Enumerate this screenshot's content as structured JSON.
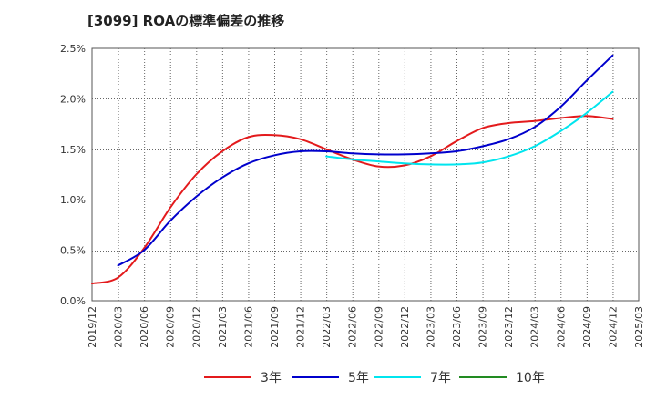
{
  "chart_data": {
    "type": "line",
    "title": "[3099]  ROAの標準偏差の推移",
    "xlabel": "",
    "ylabel": "",
    "x_ticks": [
      "2019/12",
      "2020/03",
      "2020/06",
      "2020/09",
      "2020/12",
      "2021/03",
      "2021/06",
      "2021/09",
      "2021/12",
      "2022/03",
      "2022/06",
      "2022/09",
      "2022/12",
      "2023/03",
      "2023/06",
      "2023/09",
      "2023/12",
      "2024/03",
      "2024/06",
      "2024/09",
      "2024/12",
      "2025/03"
    ],
    "y_ticks": [
      "0.0%",
      "0.5%",
      "1.0%",
      "1.5%",
      "2.0%",
      "2.5%"
    ],
    "ylim": [
      0,
      2.5
    ],
    "grid": true,
    "legend_position": "bottom",
    "series": [
      {
        "name": "3年",
        "color": "#e31a1c",
        "x": [
          "2019/12",
          "2020/03",
          "2020/06",
          "2020/09",
          "2020/12",
          "2021/03",
          "2021/06",
          "2021/09",
          "2021/12",
          "2022/03",
          "2022/06",
          "2022/09",
          "2022/12",
          "2023/03",
          "2023/06",
          "2023/09",
          "2023/12",
          "2024/03",
          "2024/06",
          "2024/09",
          "2024/12"
        ],
        "values": [
          0.17,
          0.23,
          0.52,
          0.92,
          1.25,
          1.48,
          1.62,
          1.64,
          1.6,
          1.5,
          1.4,
          1.33,
          1.34,
          1.43,
          1.58,
          1.71,
          1.76,
          1.78,
          1.81,
          1.83,
          1.8
        ]
      },
      {
        "name": "5年",
        "color": "#0000cc",
        "x": [
          "2020/03",
          "2020/06",
          "2020/09",
          "2020/12",
          "2021/03",
          "2021/06",
          "2021/09",
          "2021/12",
          "2022/03",
          "2022/06",
          "2022/09",
          "2022/12",
          "2023/03",
          "2023/06",
          "2023/09",
          "2023/12",
          "2024/03",
          "2024/06",
          "2024/09",
          "2024/12"
        ],
        "values": [
          0.35,
          0.5,
          0.79,
          1.03,
          1.22,
          1.36,
          1.44,
          1.48,
          1.48,
          1.46,
          1.45,
          1.45,
          1.46,
          1.48,
          1.53,
          1.6,
          1.72,
          1.92,
          2.18,
          2.43
        ]
      },
      {
        "name": "7年",
        "color": "#00e5ee",
        "x": [
          "2022/03",
          "2022/06",
          "2022/09",
          "2022/12",
          "2023/03",
          "2023/06",
          "2023/09",
          "2023/12",
          "2024/03",
          "2024/06",
          "2024/09",
          "2024/12"
        ],
        "values": [
          1.43,
          1.4,
          1.38,
          1.36,
          1.35,
          1.35,
          1.37,
          1.43,
          1.53,
          1.68,
          1.86,
          2.07
        ]
      },
      {
        "name": "10年",
        "color": "#228b22",
        "x": [],
        "values": []
      }
    ]
  }
}
